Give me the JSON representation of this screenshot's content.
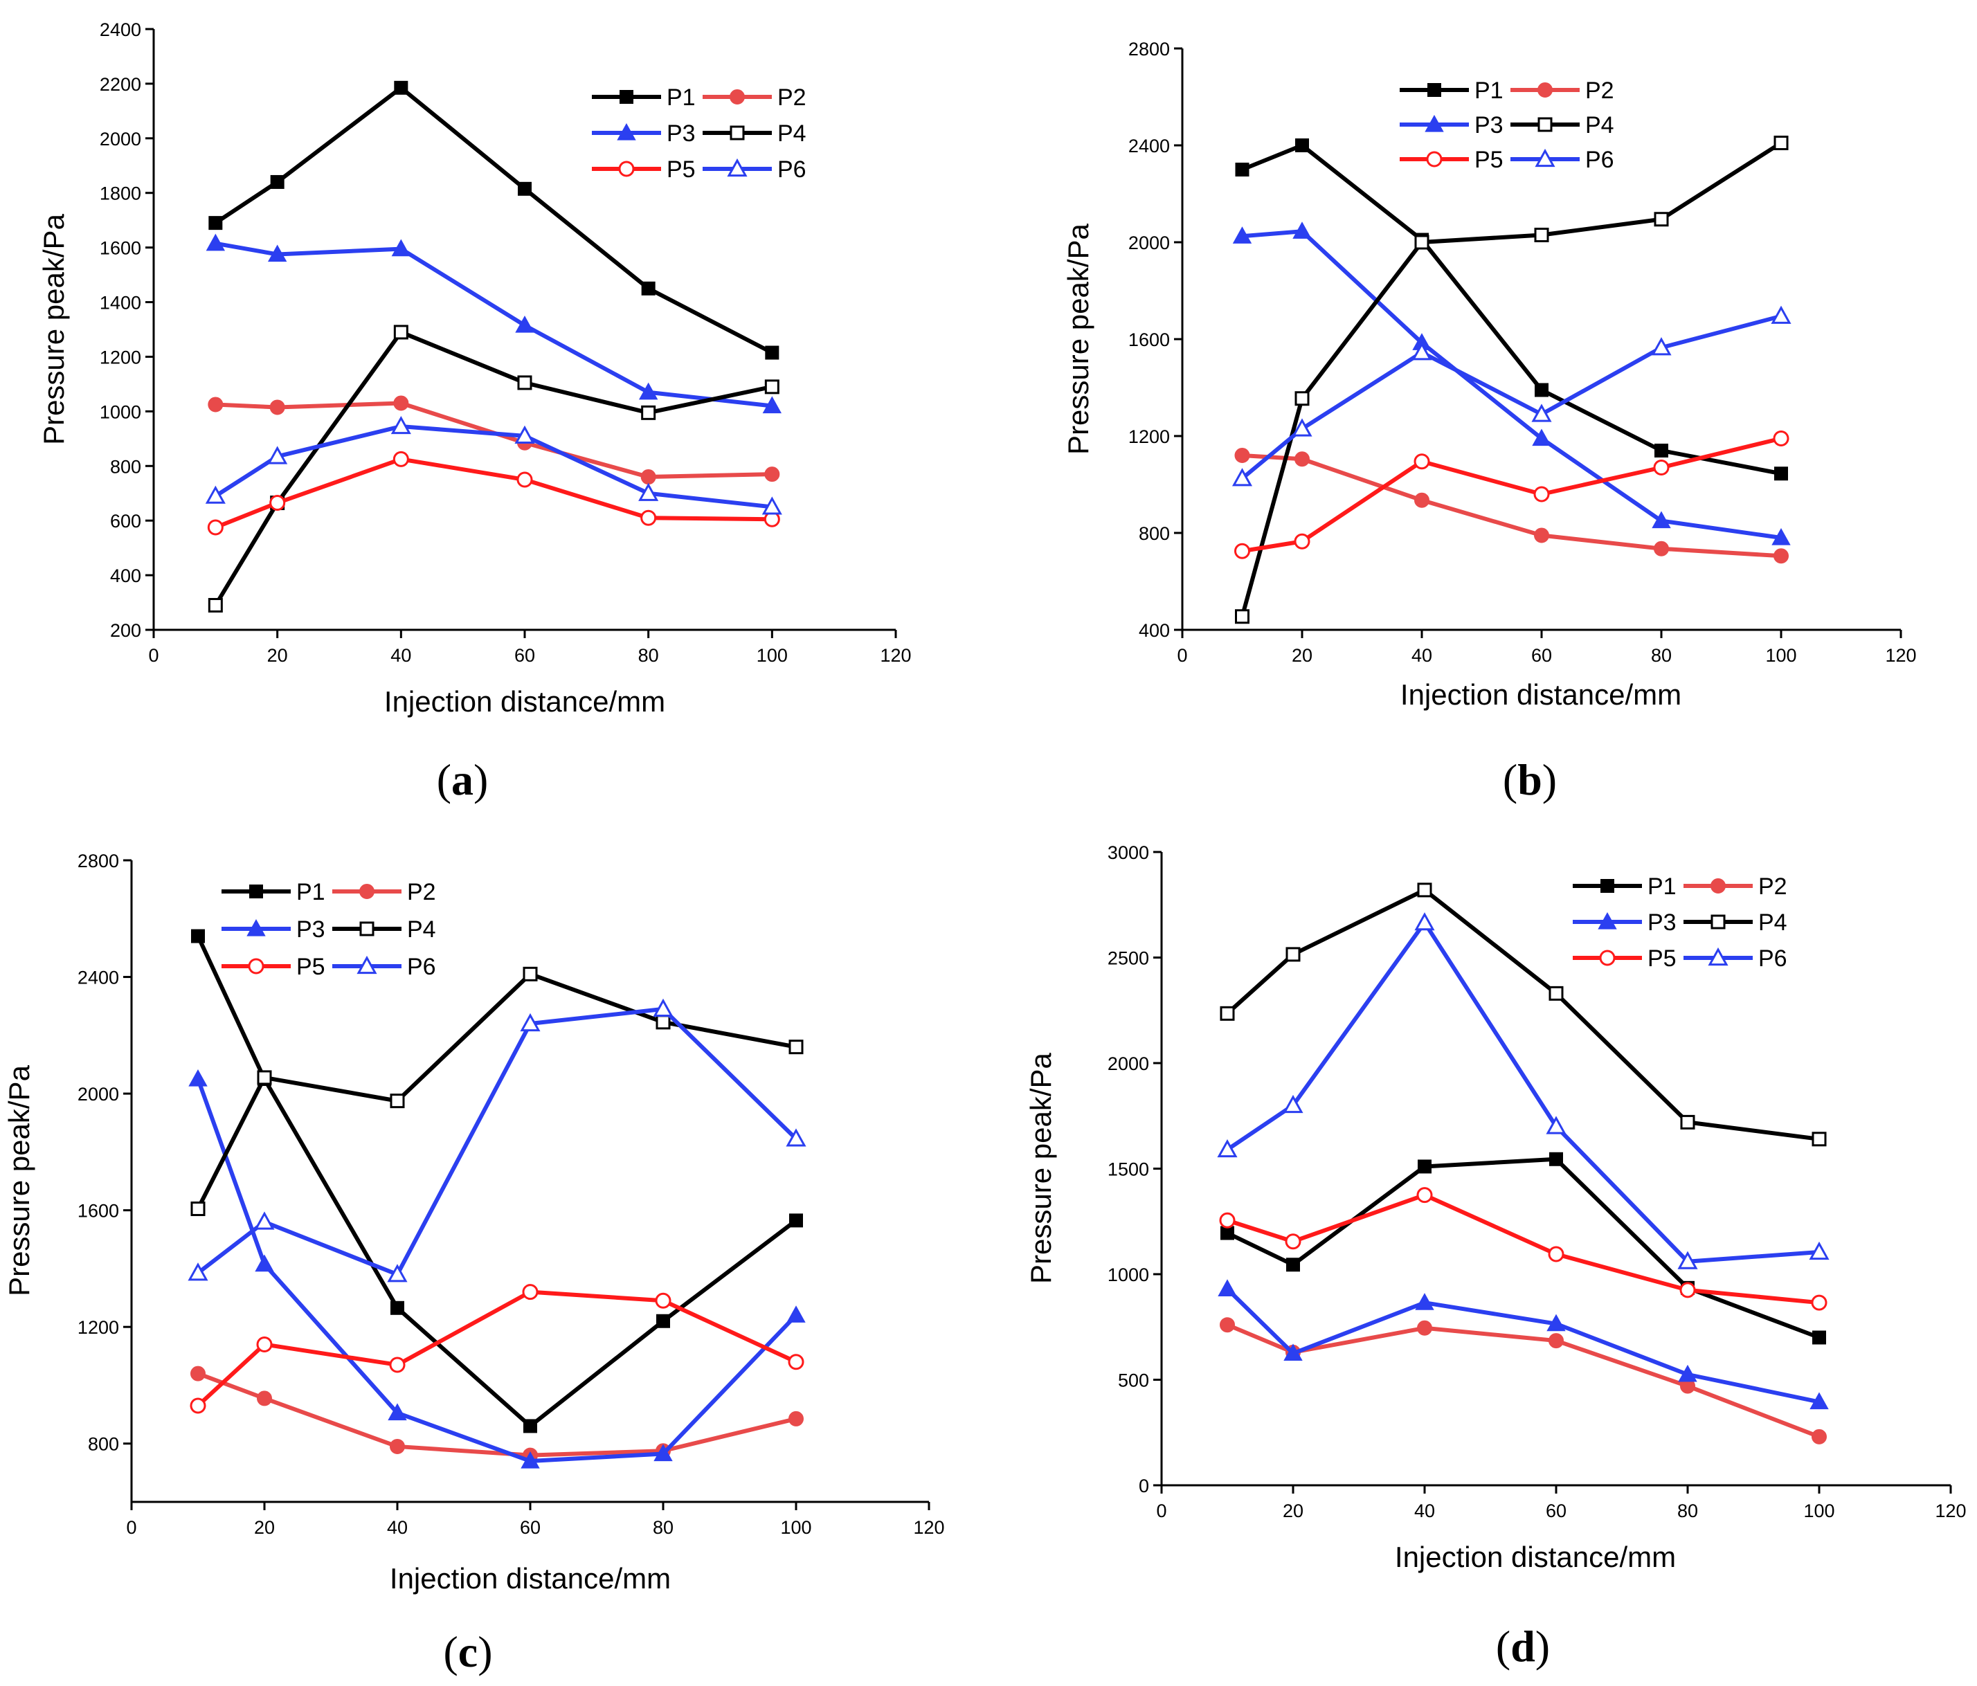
{
  "chart_data": [
    {
      "type": "line",
      "panel_label": "a",
      "xlabel": "Injection distance/mm",
      "ylabel": "Pressure peak/Pa",
      "xlim": [
        0,
        120
      ],
      "ylim": [
        200,
        2400
      ],
      "xticks": [
        0,
        20,
        40,
        60,
        80,
        100,
        120
      ],
      "yticks": [
        200,
        400,
        600,
        800,
        1000,
        1200,
        1400,
        1600,
        1800,
        2000,
        2200,
        2400
      ],
      "x": [
        10,
        20,
        40,
        60,
        80,
        100
      ],
      "legend_position": "top-right",
      "series": [
        {
          "name": "P1",
          "color": "#000000",
          "marker": "square-filled",
          "values": [
            1690,
            1840,
            2185,
            1815,
            1450,
            1215
          ]
        },
        {
          "name": "P2",
          "color": "#e84a4a",
          "marker": "circle-filled",
          "values": [
            1025,
            1015,
            1030,
            885,
            760,
            770
          ]
        },
        {
          "name": "P3",
          "color": "#2b3ff0",
          "marker": "triangle-filled",
          "values": [
            1615,
            1575,
            1595,
            1315,
            1070,
            1020
          ]
        },
        {
          "name": "P4",
          "color": "#000000",
          "marker": "square-open",
          "values": [
            290,
            665,
            1290,
            1105,
            995,
            1090
          ]
        },
        {
          "name": "P5",
          "color": "#ff1a1a",
          "marker": "circle-open",
          "values": [
            575,
            665,
            825,
            750,
            610,
            605
          ]
        },
        {
          "name": "P6",
          "color": "#2b3ff0",
          "marker": "triangle-open",
          "values": [
            690,
            835,
            945,
            910,
            700,
            650
          ]
        }
      ]
    },
    {
      "type": "line",
      "panel_label": "b",
      "xlabel": "Injection distance/mm",
      "ylabel": "Pressure peak/Pa",
      "xlim": [
        0,
        120
      ],
      "ylim": [
        400,
        2800
      ],
      "xticks": [
        0,
        20,
        40,
        60,
        80,
        100,
        120
      ],
      "yticks": [
        400,
        800,
        1200,
        1600,
        2000,
        2400,
        2800
      ],
      "x": [
        10,
        20,
        40,
        60,
        80,
        100
      ],
      "legend_position": "top-right",
      "series": [
        {
          "name": "P1",
          "color": "#000000",
          "marker": "square-filled",
          "values": [
            2300,
            2400,
            2010,
            1390,
            1140,
            1045
          ]
        },
        {
          "name": "P2",
          "color": "#e84a4a",
          "marker": "circle-filled",
          "values": [
            1120,
            1105,
            935,
            790,
            735,
            705
          ]
        },
        {
          "name": "P3",
          "color": "#2b3ff0",
          "marker": "triangle-filled",
          "values": [
            2025,
            2045,
            1585,
            1190,
            850,
            780
          ]
        },
        {
          "name": "P4",
          "color": "#000000",
          "marker": "square-open",
          "values": [
            455,
            1355,
            2000,
            2030,
            2095,
            2410
          ]
        },
        {
          "name": "P5",
          "color": "#ff1a1a",
          "marker": "circle-open",
          "values": [
            725,
            765,
            1095,
            960,
            1070,
            1190
          ]
        },
        {
          "name": "P6",
          "color": "#2b3ff0",
          "marker": "triangle-open",
          "values": [
            1025,
            1230,
            1545,
            1290,
            1565,
            1695
          ]
        }
      ]
    },
    {
      "type": "line",
      "panel_label": "c",
      "xlabel": "Injection distance/mm",
      "ylabel": "Pressure peak/Pa",
      "xlim": [
        0,
        120
      ],
      "ylim": [
        600,
        2800
      ],
      "xticks": [
        0,
        20,
        40,
        60,
        80,
        100,
        120
      ],
      "yticks": [
        800,
        1200,
        1600,
        2000,
        2400,
        2800
      ],
      "x": [
        10,
        20,
        40,
        60,
        80,
        100
      ],
      "legend_position": "top-center",
      "series": [
        {
          "name": "P1",
          "color": "#000000",
          "marker": "square-filled",
          "values": [
            2540,
            2050,
            1265,
            860,
            1220,
            1565
          ]
        },
        {
          "name": "P2",
          "color": "#e84a4a",
          "marker": "circle-filled",
          "values": [
            1040,
            955,
            790,
            760,
            775,
            885
          ]
        },
        {
          "name": "P3",
          "color": "#2b3ff0",
          "marker": "triangle-filled",
          "values": [
            2050,
            1415,
            905,
            740,
            765,
            1240
          ]
        },
        {
          "name": "P4",
          "color": "#000000",
          "marker": "square-open",
          "values": [
            1605,
            2055,
            1975,
            2410,
            2245,
            2160
          ]
        },
        {
          "name": "P5",
          "color": "#ff1a1a",
          "marker": "circle-open",
          "values": [
            930,
            1140,
            1070,
            1320,
            1290,
            1080
          ]
        },
        {
          "name": "P6",
          "color": "#2b3ff0",
          "marker": "triangle-open",
          "values": [
            1385,
            1560,
            1380,
            2240,
            2290,
            1845
          ]
        }
      ]
    },
    {
      "type": "line",
      "panel_label": "d",
      "xlabel": "Injection distance/mm",
      "ylabel": "Pressure peak/Pa",
      "xlim": [
        0,
        120
      ],
      "ylim": [
        0,
        3000
      ],
      "xticks": [
        0,
        20,
        40,
        60,
        80,
        100,
        120
      ],
      "yticks": [
        0,
        500,
        1000,
        1500,
        2000,
        2500,
        3000
      ],
      "x": [
        10,
        20,
        40,
        60,
        80,
        100
      ],
      "legend_position": "top-right",
      "series": [
        {
          "name": "P1",
          "color": "#000000",
          "marker": "square-filled",
          "values": [
            1195,
            1045,
            1510,
            1545,
            935,
            700
          ]
        },
        {
          "name": "P2",
          "color": "#e84a4a",
          "marker": "circle-filled",
          "values": [
            760,
            630,
            745,
            685,
            470,
            230
          ]
        },
        {
          "name": "P3",
          "color": "#2b3ff0",
          "marker": "triangle-filled",
          "values": [
            930,
            625,
            865,
            765,
            525,
            395
          ]
        },
        {
          "name": "P4",
          "color": "#000000",
          "marker": "square-open",
          "values": [
            2235,
            2515,
            2820,
            2330,
            1720,
            1640
          ]
        },
        {
          "name": "P5",
          "color": "#ff1a1a",
          "marker": "circle-open",
          "values": [
            1255,
            1155,
            1375,
            1095,
            925,
            865
          ]
        },
        {
          "name": "P6",
          "color": "#2b3ff0",
          "marker": "triangle-open",
          "values": [
            1590,
            1800,
            2665,
            1700,
            1060,
            1105
          ]
        }
      ]
    }
  ]
}
